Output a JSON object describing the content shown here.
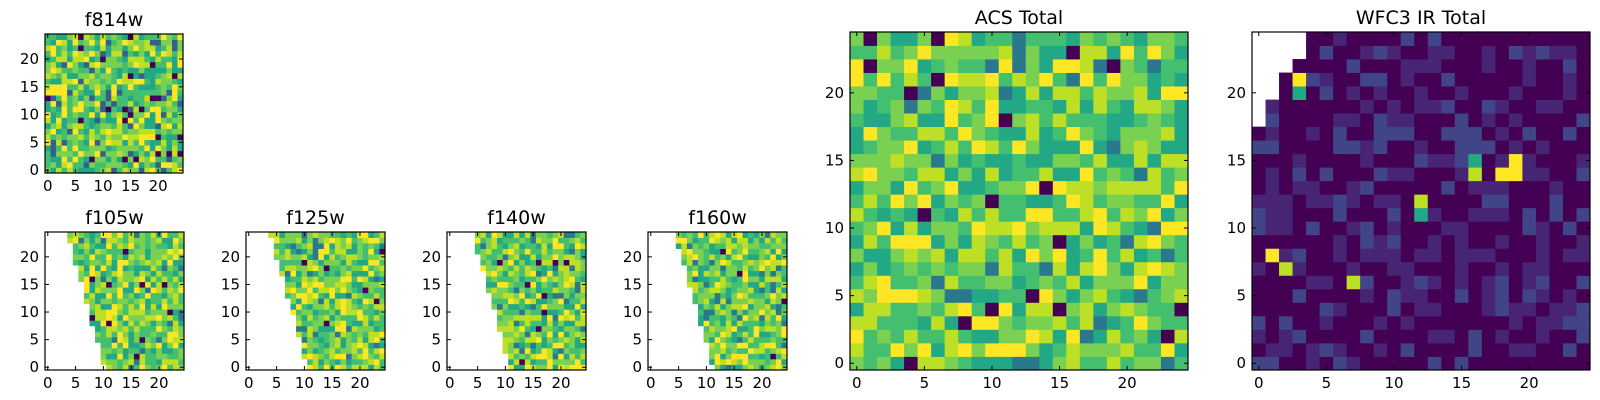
{
  "chart_data": [
    {
      "type": "heatmap",
      "title": "f814w",
      "xticks": [
        "0",
        "5",
        "10",
        "15",
        "20"
      ],
      "yticks": [
        "0",
        "5",
        "10",
        "15",
        "20"
      ],
      "xlim": [
        -0.5,
        24.5
      ],
      "ylim": [
        -0.5,
        24.5
      ],
      "colormap": "viridis",
      "note": "dense pixel texture, mostly green-yellow with a few dark pixels"
    },
    {
      "type": "heatmap",
      "title": "f105w",
      "xticks": [
        "0",
        "5",
        "10",
        "15",
        "20"
      ],
      "yticks": [
        "0",
        "5",
        "10",
        "15",
        "20"
      ],
      "xlim": [
        -0.5,
        24.5
      ],
      "ylim": [
        -0.5,
        24.5
      ],
      "colormap": "viridis",
      "masked_region": "white wedge on left side"
    },
    {
      "type": "heatmap",
      "title": "f125w",
      "xticks": [
        "0",
        "5",
        "10",
        "15",
        "20"
      ],
      "yticks": [
        "0",
        "5",
        "10",
        "15",
        "20"
      ],
      "xlim": [
        -0.5,
        24.5
      ],
      "ylim": [
        -0.5,
        24.5
      ],
      "colormap": "viridis",
      "masked_region": "white wedge on left side"
    },
    {
      "type": "heatmap",
      "title": "f140w",
      "xticks": [
        "0",
        "5",
        "10",
        "15",
        "20"
      ],
      "yticks": [
        "0",
        "5",
        "10",
        "15",
        "20"
      ],
      "xlim": [
        -0.5,
        24.5
      ],
      "ylim": [
        -0.5,
        24.5
      ],
      "colormap": "viridis",
      "masked_region": "white wedge on left side"
    },
    {
      "type": "heatmap",
      "title": "f160w",
      "xticks": [
        "0",
        "5",
        "10",
        "15",
        "20"
      ],
      "yticks": [
        "0",
        "5",
        "10",
        "15",
        "20"
      ],
      "xlim": [
        -0.5,
        24.5
      ],
      "ylim": [
        -0.5,
        24.5
      ],
      "colormap": "viridis",
      "masked_region": "white wedge on left side"
    },
    {
      "type": "heatmap",
      "title": "ACS Total",
      "xticks": [
        "0",
        "5",
        "10",
        "15",
        "20"
      ],
      "yticks": [
        "0",
        "5",
        "10",
        "15",
        "20"
      ],
      "xlim": [
        -0.5,
        24.5
      ],
      "ylim": [
        -0.5,
        24.5
      ],
      "colormap": "viridis",
      "dark_cells": [
        [
          4,
          0
        ],
        [
          10,
          4
        ],
        [
          13,
          5
        ],
        [
          5,
          11
        ],
        [
          23,
          2
        ],
        [
          16,
          23
        ],
        [
          10,
          12
        ],
        [
          11,
          18
        ],
        [
          4,
          20
        ],
        [
          19,
          22
        ]
      ]
    },
    {
      "type": "heatmap",
      "title": "WFC3 IR Total",
      "xticks": [
        "0",
        "5",
        "10",
        "15",
        "20"
      ],
      "yticks": [
        "0",
        "5",
        "10",
        "15",
        "20"
      ],
      "xlim": [
        -0.5,
        24.5
      ],
      "ylim": [
        -0.5,
        24.5
      ],
      "colormap": "viridis",
      "masked_region": "white corner at top-left",
      "bright_cells": [
        [
          2,
          7
        ],
        [
          1,
          8
        ],
        [
          7,
          6
        ],
        [
          3,
          20
        ],
        [
          3,
          21
        ],
        [
          12,
          12
        ],
        [
          12,
          11
        ],
        [
          16,
          14
        ],
        [
          18,
          14
        ],
        [
          19,
          14
        ],
        [
          19,
          15
        ],
        [
          16,
          15
        ]
      ]
    }
  ]
}
